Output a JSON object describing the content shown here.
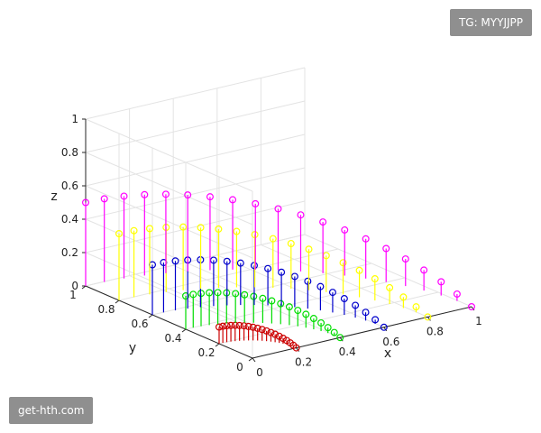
{
  "watermarks": {
    "top_right": "TG: MYYJJPP",
    "bottom_left": "get-hth.com"
  },
  "chart_data": {
    "type": "stem3",
    "title": "",
    "xlabel": "x",
    "ylabel": "y",
    "zlabel": "z",
    "xlim": [
      0,
      1
    ],
    "ylim": [
      0,
      1
    ],
    "zlim": [
      0,
      1
    ],
    "x_ticks": [
      "0",
      "0.2",
      "0.4",
      "0.6",
      "0.8",
      "1"
    ],
    "y_ticks": [
      "0",
      "0.2",
      "0.4",
      "0.6",
      "0.8",
      "1"
    ],
    "z_ticks": [
      "0",
      "0.2",
      "0.4",
      "0.6",
      "0.8",
      "1"
    ],
    "grid": true,
    "marker": "circle",
    "curve": "x = r*cos(t), y = r*sin(t), z = r*sin(t)/2, t in [0, pi/2]",
    "points_per_series": 20,
    "series": [
      {
        "r": 0.2,
        "color": "#cc0000"
      },
      {
        "r": 0.4,
        "color": "#00dd00"
      },
      {
        "r": 0.6,
        "color": "#0000cc"
      },
      {
        "r": 0.8,
        "color": "#ffff00"
      },
      {
        "r": 1.0,
        "color": "#ff00ff"
      }
    ]
  }
}
